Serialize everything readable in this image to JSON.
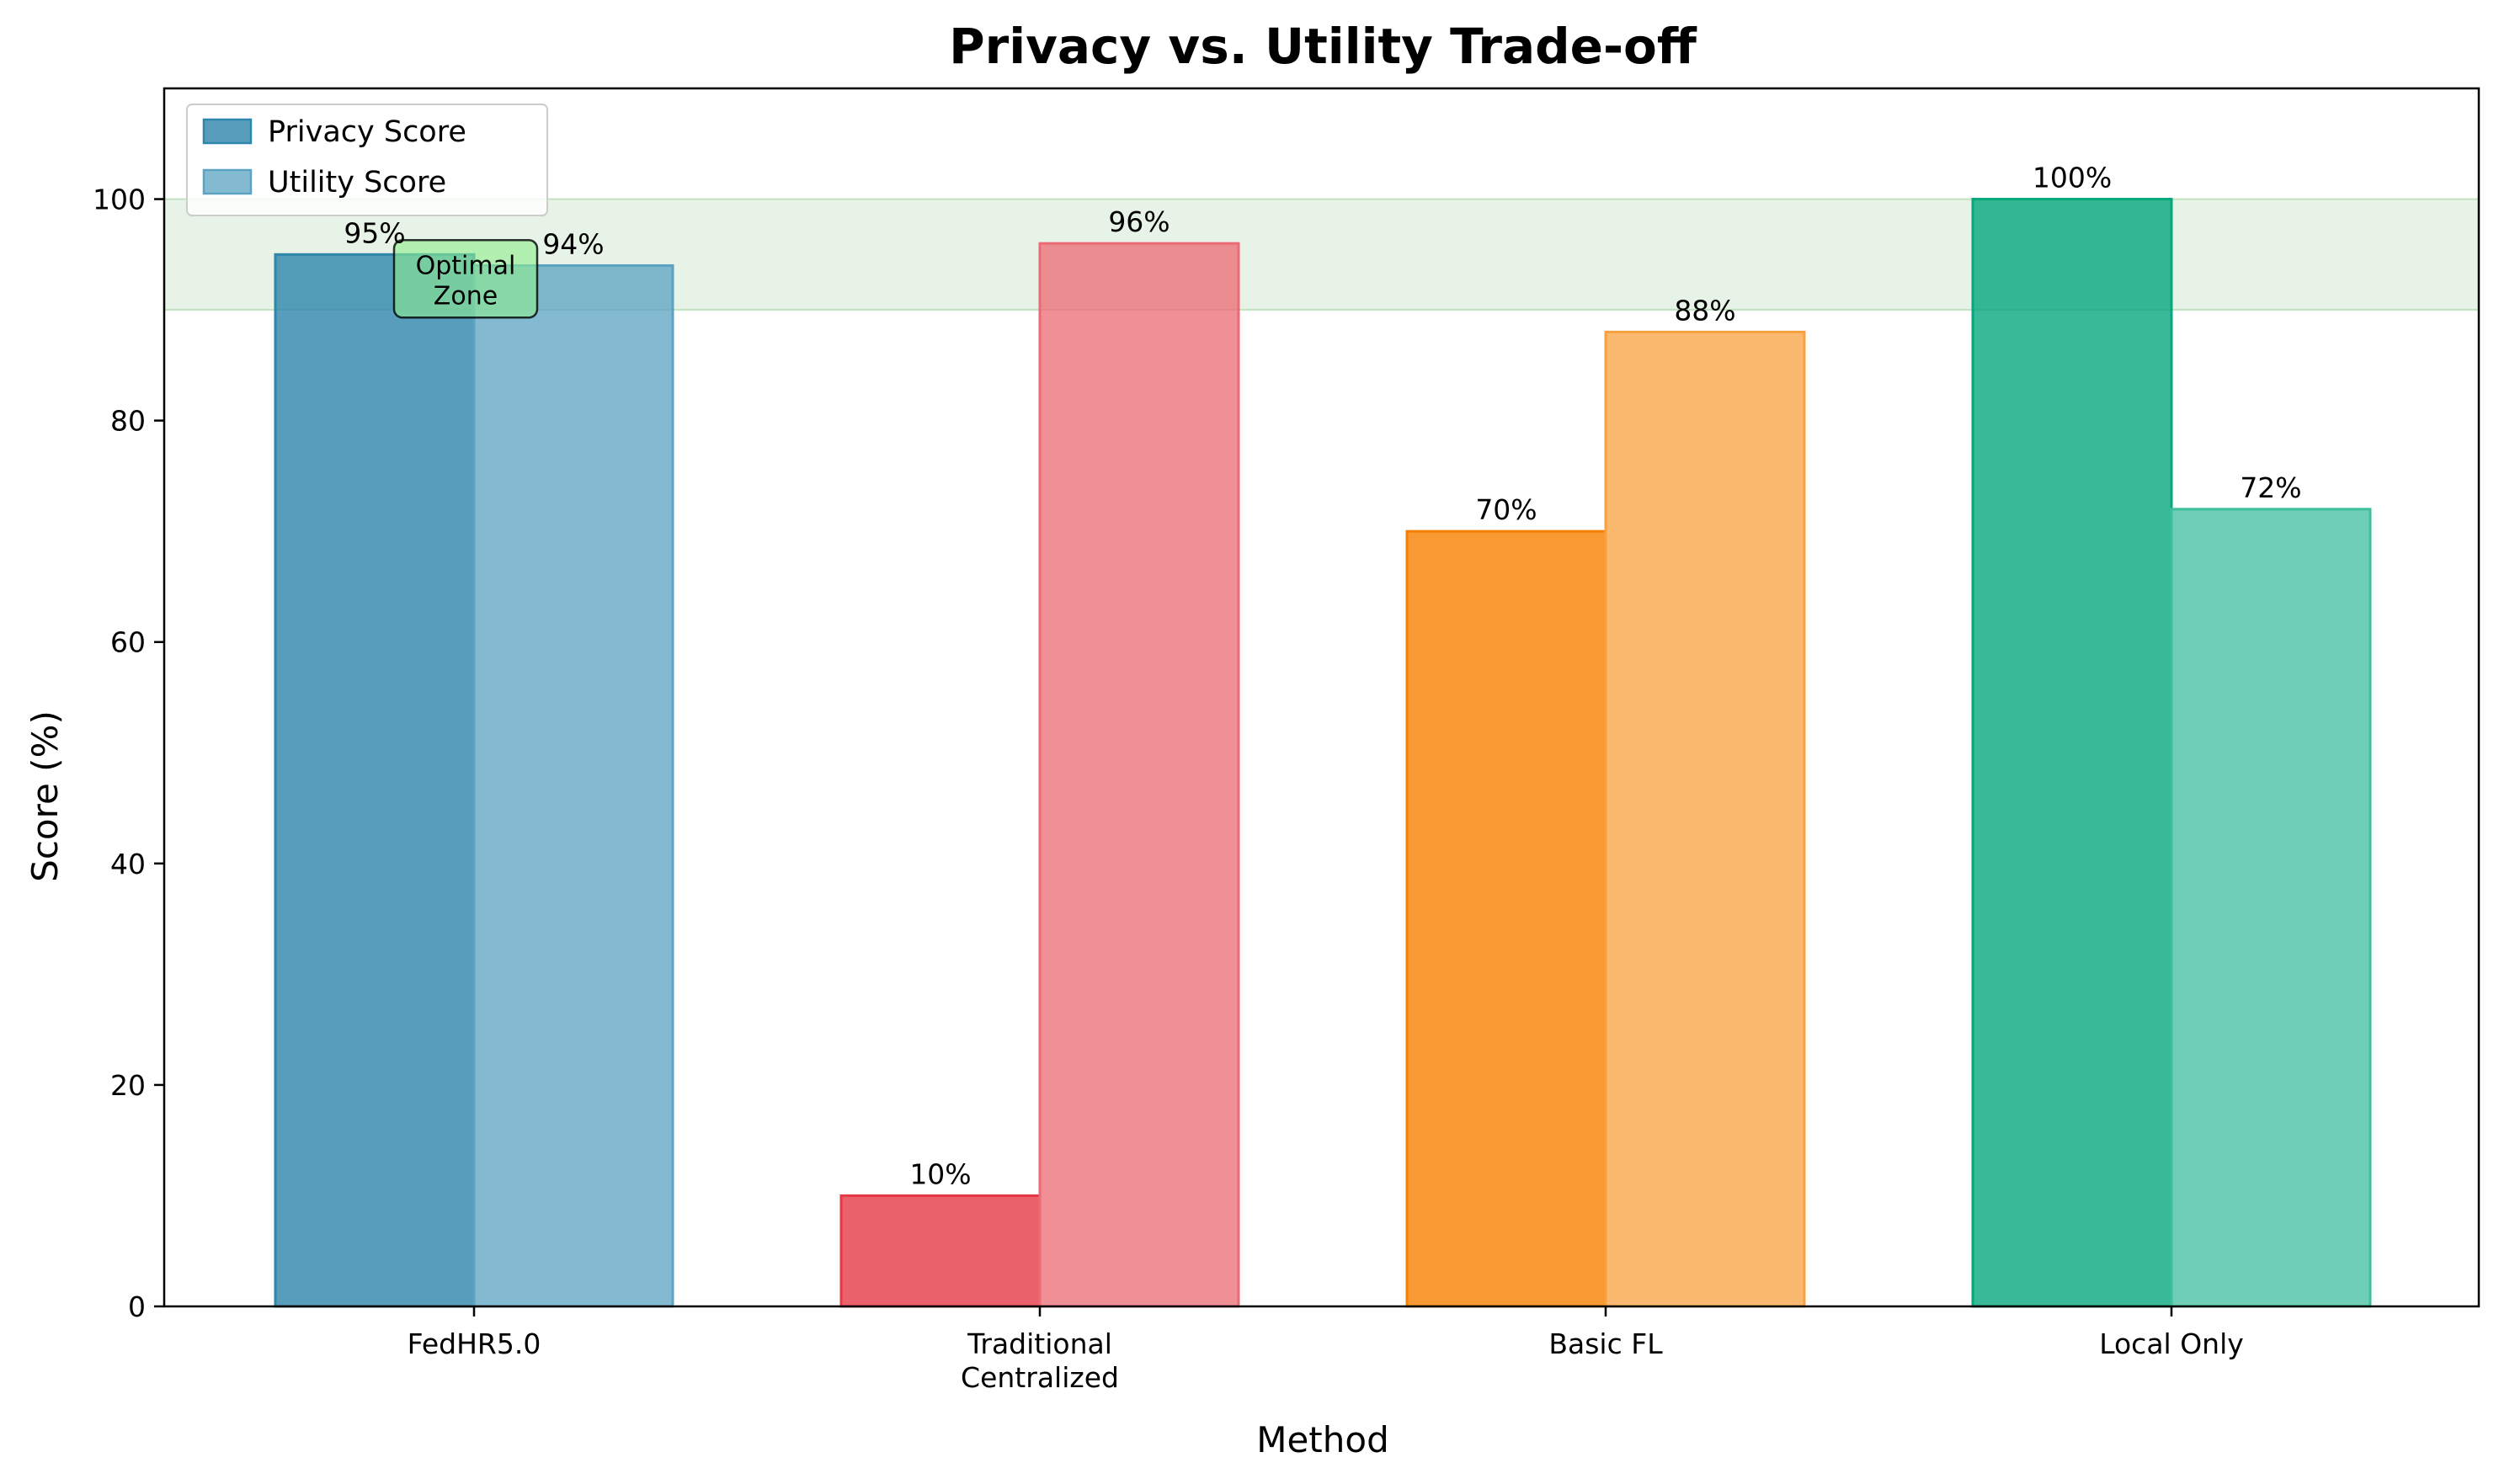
{
  "chart_data": {
    "type": "bar",
    "title": "Privacy vs. Utility Trade-off",
    "xlabel": "Method",
    "ylabel": "Score (%)",
    "categories": [
      [
        "FedHR5.0"
      ],
      [
        "Traditional",
        "Centralized"
      ],
      [
        "Basic FL"
      ],
      [
        "Local Only"
      ]
    ],
    "series": [
      {
        "name": "Privacy Score",
        "values": [
          95,
          10,
          70,
          100
        ],
        "labels": [
          "95%",
          "10%",
          "70%",
          "100%"
        ]
      },
      {
        "name": "Utility Score",
        "values": [
          94,
          96,
          88,
          72
        ],
        "labels": [
          "94%",
          "96%",
          "88%",
          "72%"
        ]
      }
    ],
    "bar_colors": [
      [
        "#2E86AB",
        "#5BA3C2"
      ],
      [
        "#E63946",
        "#EC6A74"
      ],
      [
        "#F77F00",
        "#F9A03F"
      ],
      [
        "#06A77D",
        "#3DBF9D"
      ]
    ],
    "ylim": [
      0,
      110
    ],
    "yticks": [
      0,
      20,
      40,
      60,
      80,
      100
    ],
    "optimal_zone": {
      "y_range": [
        90,
        100
      ],
      "color": "#90C990"
    },
    "annotation": {
      "lines": [
        "Optimal",
        "Zone"
      ],
      "category_index": 0,
      "y": 92.8
    },
    "legend_position": "upper-left",
    "grid": false
  }
}
